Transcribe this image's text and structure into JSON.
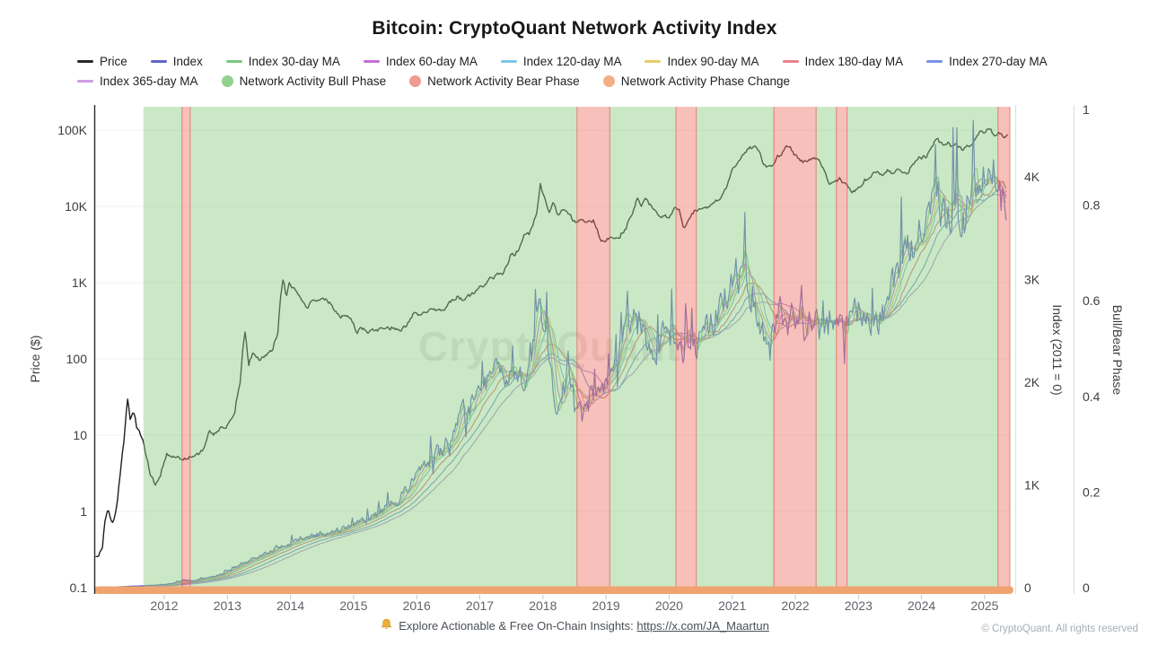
{
  "title": "Bitcoin: CryptoQuant Network Activity Index",
  "watermark": "CryptoQuant",
  "legend": {
    "rows": [
      [
        {
          "label": "Price",
          "type": "line",
          "color": "#26282b"
        },
        {
          "label": "Index",
          "type": "line",
          "color": "#6065c7"
        },
        {
          "label": "Index 30-day MA",
          "type": "line",
          "color": "#7dc87f"
        },
        {
          "label": "Index 60-day MA",
          "type": "line",
          "color": "#c36fd1"
        },
        {
          "label": "Index 120-day MA",
          "type": "line",
          "color": "#7cc4e4"
        },
        {
          "label": "Index 90-day MA",
          "type": "line",
          "color": "#e4cd67"
        },
        {
          "label": "Index 180-day MA",
          "type": "line",
          "color": "#ec7f8d"
        },
        {
          "label": "Index 270-day MA",
          "type": "line",
          "color": "#7693e0"
        }
      ],
      [
        {
          "label": "Index 365-day MA",
          "type": "line",
          "color": "#cf9ce4"
        },
        {
          "label": "Network Activity Bull Phase",
          "type": "circle",
          "color": "#93d18e"
        },
        {
          "label": "Network Activity Bear Phase",
          "type": "circle",
          "color": "#f09b90"
        },
        {
          "label": "Network Activity Phase Change",
          "type": "circle",
          "color": "#f0b083"
        }
      ]
    ]
  },
  "axes": {
    "left": {
      "title": "Price ($)",
      "ticks": [
        "100K",
        "10K",
        "1K",
        "100",
        "10",
        "1",
        "0.1"
      ],
      "values": [
        100000,
        10000,
        1000,
        100,
        10,
        1,
        0.1
      ]
    },
    "right_index": {
      "title": "Index (2011 = 0)",
      "ticks": [
        "4K",
        "3K",
        "2K",
        "1K",
        "0"
      ],
      "values": [
        4000,
        3000,
        2000,
        1000,
        0
      ]
    },
    "right_phase": {
      "title": "Bull/Bear Phase",
      "ticks": [
        "1",
        "0.8",
        "0.6",
        "0.4",
        "0.2",
        "0"
      ],
      "values": [
        1,
        0.8,
        0.6,
        0.4,
        0.2,
        0
      ]
    },
    "x": {
      "ticks": [
        "2012",
        "2013",
        "2014",
        "2015",
        "2016",
        "2017",
        "2018",
        "2019",
        "2020",
        "2021",
        "2022",
        "2023",
        "2024",
        "2025"
      ],
      "values": [
        2012,
        2013,
        2014,
        2015,
        2016,
        2017,
        2018,
        2019,
        2020,
        2021,
        2022,
        2023,
        2024,
        2025
      ]
    }
  },
  "footer": {
    "text": "Explore Actionable & Free On-Chain Insights:",
    "link": "https://x.com/JA_Maartun",
    "copyright": "© CryptoQuant. All rights reserved"
  },
  "chart_data": {
    "type": "line",
    "x_domain": [
      2010.92,
      2025.4
    ],
    "price_axis": {
      "scale": "log",
      "range": [
        0.1,
        100000
      ]
    },
    "index_axis": {
      "range": [
        0,
        4672
      ]
    },
    "phase_axis": {
      "range": [
        0,
        1
      ]
    },
    "colors": {
      "price": "#1c1e21",
      "index": "#6065c7",
      "bull_band": "rgba(140,205,128,0.45)",
      "bear_band": "rgba(238,122,108,0.47)",
      "bear_edge": "rgba(221,85,75,0.55)",
      "change_band": "#efa46f",
      "grid": "rgba(0,0,0,0.055)"
    },
    "phases": {
      "bull": [
        [
          2011.67,
          2012.28
        ],
        [
          2012.41,
          2018.54
        ],
        [
          2019.06,
          2020.11
        ],
        [
          2020.43,
          2021.66
        ],
        [
          2022.33,
          2022.65
        ],
        [
          2022.82,
          2025.21
        ]
      ],
      "bear": [
        [
          2012.28,
          2012.41
        ],
        [
          2018.54,
          2019.06
        ],
        [
          2020.11,
          2020.43
        ],
        [
          2021.66,
          2022.33
        ],
        [
          2022.65,
          2022.82
        ],
        [
          2025.21,
          2025.4
        ]
      ],
      "change": [
        [
          2010.92,
          2025.4
        ]
      ]
    },
    "price_anchors": [
      [
        2010.92,
        0.25
      ],
      [
        2011.02,
        0.32
      ],
      [
        2011.07,
        0.8
      ],
      [
        2011.11,
        1.06
      ],
      [
        2011.15,
        0.82
      ],
      [
        2011.19,
        0.7
      ],
      [
        2011.25,
        1.15
      ],
      [
        2011.31,
        3.2
      ],
      [
        2011.37,
        9
      ],
      [
        2011.42,
        29.5
      ],
      [
        2011.46,
        16.5
      ],
      [
        2011.51,
        21
      ],
      [
        2011.56,
        13
      ],
      [
        2011.62,
        10.5
      ],
      [
        2011.69,
        6.5
      ],
      [
        2011.77,
        3.2
      ],
      [
        2011.86,
        2.2
      ],
      [
        2011.94,
        3.1
      ],
      [
        2012.04,
        5.6
      ],
      [
        2012.16,
        5
      ],
      [
        2012.3,
        4.85
      ],
      [
        2012.42,
        5.15
      ],
      [
        2012.54,
        5.7
      ],
      [
        2012.64,
        6.9
      ],
      [
        2012.71,
        11.2
      ],
      [
        2012.79,
        10.2
      ],
      [
        2012.92,
        12.8
      ],
      [
        2013.02,
        13.6
      ],
      [
        2013.12,
        21
      ],
      [
        2013.21,
        48
      ],
      [
        2013.28,
        210
      ],
      [
        2013.33,
        77
      ],
      [
        2013.4,
        118
      ],
      [
        2013.5,
        97
      ],
      [
        2013.62,
        106
      ],
      [
        2013.72,
        135
      ],
      [
        2013.81,
        230
      ],
      [
        2013.88,
        1120
      ],
      [
        2013.93,
        640
      ],
      [
        2013.98,
        960
      ],
      [
        2014.06,
        820
      ],
      [
        2014.16,
        610
      ],
      [
        2014.26,
        445
      ],
      [
        2014.36,
        590
      ],
      [
        2014.47,
        605
      ],
      [
        2014.58,
        580
      ],
      [
        2014.68,
        470
      ],
      [
        2014.78,
        375
      ],
      [
        2014.88,
        355
      ],
      [
        2014.98,
        310
      ],
      [
        2015.05,
        215
      ],
      [
        2015.12,
        255
      ],
      [
        2015.22,
        232
      ],
      [
        2015.36,
        248
      ],
      [
        2015.5,
        228
      ],
      [
        2015.62,
        258
      ],
      [
        2015.72,
        236
      ],
      [
        2015.82,
        262
      ],
      [
        2015.9,
        335
      ],
      [
        2015.97,
        415
      ],
      [
        2016.06,
        382
      ],
      [
        2016.16,
        422
      ],
      [
        2016.26,
        452
      ],
      [
        2016.36,
        424
      ],
      [
        2016.46,
        455
      ],
      [
        2016.56,
        580
      ],
      [
        2016.63,
        660
      ],
      [
        2016.71,
        598
      ],
      [
        2016.81,
        638
      ],
      [
        2016.91,
        735
      ],
      [
        2017.0,
        965
      ],
      [
        2017.06,
        888
      ],
      [
        2017.16,
        1190
      ],
      [
        2017.26,
        1210
      ],
      [
        2017.36,
        1310
      ],
      [
        2017.46,
        1920
      ],
      [
        2017.51,
        2550
      ],
      [
        2017.56,
        2280
      ],
      [
        2017.63,
        2850
      ],
      [
        2017.71,
        4300
      ],
      [
        2017.79,
        4250
      ],
      [
        2017.86,
        6600
      ],
      [
        2017.91,
        8100
      ],
      [
        2017.96,
        19200
      ],
      [
        2018.01,
        13800
      ],
      [
        2018.06,
        10200
      ],
      [
        2018.11,
        8400
      ],
      [
        2018.16,
        11200
      ],
      [
        2018.23,
        7500
      ],
      [
        2018.31,
        9100
      ],
      [
        2018.41,
        7400
      ],
      [
        2018.51,
        6400
      ],
      [
        2018.61,
        6600
      ],
      [
        2018.71,
        6300
      ],
      [
        2018.81,
        6450
      ],
      [
        2018.89,
        4100
      ],
      [
        2018.96,
        3300
      ],
      [
        2019.03,
        3750
      ],
      [
        2019.12,
        3920
      ],
      [
        2019.22,
        4150
      ],
      [
        2019.32,
        5400
      ],
      [
        2019.42,
        8200
      ],
      [
        2019.5,
        12800
      ],
      [
        2019.56,
        10400
      ],
      [
        2019.62,
        11900
      ],
      [
        2019.72,
        9700
      ],
      [
        2019.82,
        8300
      ],
      [
        2019.92,
        7250
      ],
      [
        2020.01,
        7200
      ],
      [
        2020.08,
        9500
      ],
      [
        2020.16,
        8900
      ],
      [
        2020.23,
        5000
      ],
      [
        2020.32,
        6900
      ],
      [
        2020.42,
        9100
      ],
      [
        2020.52,
        9400
      ],
      [
        2020.62,
        9300
      ],
      [
        2020.72,
        11600
      ],
      [
        2020.82,
        13600
      ],
      [
        2020.92,
        19000
      ],
      [
        2021.0,
        29200
      ],
      [
        2021.06,
        34000
      ],
      [
        2021.12,
        38000
      ],
      [
        2021.18,
        50000
      ],
      [
        2021.25,
        58000
      ],
      [
        2021.32,
        59500
      ],
      [
        2021.36,
        63500
      ],
      [
        2021.43,
        53000
      ],
      [
        2021.49,
        36500
      ],
      [
        2021.56,
        34500
      ],
      [
        2021.63,
        33500
      ],
      [
        2021.71,
        43000
      ],
      [
        2021.79,
        49000
      ],
      [
        2021.86,
        65000
      ],
      [
        2021.91,
        59000
      ],
      [
        2021.98,
        47500
      ],
      [
        2022.06,
        41500
      ],
      [
        2022.14,
        38500
      ],
      [
        2022.22,
        42500
      ],
      [
        2022.31,
        45500
      ],
      [
        2022.39,
        39500
      ],
      [
        2022.46,
        29800
      ],
      [
        2022.53,
        20500
      ],
      [
        2022.61,
        20000
      ],
      [
        2022.71,
        22500
      ],
      [
        2022.81,
        19400
      ],
      [
        2022.89,
        15900
      ],
      [
        2022.97,
        16900
      ],
      [
        2023.04,
        17200
      ],
      [
        2023.1,
        21800
      ],
      [
        2023.17,
        23200
      ],
      [
        2023.24,
        28300
      ],
      [
        2023.32,
        28600
      ],
      [
        2023.4,
        26700
      ],
      [
        2023.47,
        30600
      ],
      [
        2023.54,
        25900
      ],
      [
        2023.62,
        29800
      ],
      [
        2023.7,
        26300
      ],
      [
        2023.78,
        27600
      ],
      [
        2023.85,
        34800
      ],
      [
        2023.92,
        37800
      ],
      [
        2023.99,
        43800
      ],
      [
        2024.07,
        42800
      ],
      [
        2024.14,
        52500
      ],
      [
        2024.21,
        69000
      ],
      [
        2024.26,
        73500
      ],
      [
        2024.33,
        63500
      ],
      [
        2024.41,
        67500
      ],
      [
        2024.49,
        60500
      ],
      [
        2024.56,
        65500
      ],
      [
        2024.63,
        56500
      ],
      [
        2024.71,
        61000
      ],
      [
        2024.79,
        63500
      ],
      [
        2024.86,
        76000
      ],
      [
        2024.92,
        99000
      ],
      [
        2024.98,
        96500
      ],
      [
        2025.04,
        104500
      ],
      [
        2025.1,
        96000
      ],
      [
        2025.16,
        83500
      ],
      [
        2025.22,
        95500
      ],
      [
        2025.28,
        81500
      ],
      [
        2025.36,
        86000
      ]
    ],
    "index_anchors": [
      [
        2011.02,
        3
      ],
      [
        2011.4,
        12
      ],
      [
        2011.8,
        22
      ],
      [
        2012.1,
        35
      ],
      [
        2012.3,
        75
      ],
      [
        2012.45,
        65
      ],
      [
        2012.7,
        100
      ],
      [
        2012.95,
        140
      ],
      [
        2013.2,
        230
      ],
      [
        2013.5,
        300
      ],
      [
        2013.8,
        400
      ],
      [
        2014.1,
        470
      ],
      [
        2014.4,
        515
      ],
      [
        2014.7,
        550
      ],
      [
        2014.95,
        590
      ],
      [
        2015.2,
        660
      ],
      [
        2015.5,
        760
      ],
      [
        2015.75,
        880
      ],
      [
        2016.0,
        1060
      ],
      [
        2016.25,
        1250
      ],
      [
        2016.5,
        1420
      ],
      [
        2016.75,
        1700
      ],
      [
        2016.95,
        1850
      ],
      [
        2017.1,
        2000
      ],
      [
        2017.25,
        2180
      ],
      [
        2017.4,
        2020
      ],
      [
        2017.55,
        2120
      ],
      [
        2017.7,
        2020
      ],
      [
        2017.82,
        2250
      ],
      [
        2017.93,
        2880
      ],
      [
        2018.02,
        2600
      ],
      [
        2018.12,
        2150
      ],
      [
        2018.22,
        1620
      ],
      [
        2018.32,
        1900
      ],
      [
        2018.4,
        2200
      ],
      [
        2018.5,
        1750
      ],
      [
        2018.62,
        1650
      ],
      [
        2018.75,
        1820
      ],
      [
        2018.9,
        1900
      ],
      [
        2019.05,
        2000
      ],
      [
        2019.2,
        2280
      ],
      [
        2019.35,
        2550
      ],
      [
        2019.47,
        2700
      ],
      [
        2019.62,
        2480
      ],
      [
        2019.77,
        2350
      ],
      [
        2019.92,
        2430
      ],
      [
        2020.07,
        2440
      ],
      [
        2020.2,
        2330
      ],
      [
        2020.33,
        2290
      ],
      [
        2020.47,
        2370
      ],
      [
        2020.62,
        2520
      ],
      [
        2020.77,
        2650
      ],
      [
        2020.92,
        2850
      ],
      [
        2021.05,
        3060
      ],
      [
        2021.2,
        3000
      ],
      [
        2021.33,
        2880
      ],
      [
        2021.47,
        2550
      ],
      [
        2021.57,
        2260
      ],
      [
        2021.67,
        2620
      ],
      [
        2021.77,
        2700
      ],
      [
        2021.87,
        2580
      ],
      [
        2021.97,
        2660
      ],
      [
        2022.12,
        2500
      ],
      [
        2022.27,
        2560
      ],
      [
        2022.42,
        2500
      ],
      [
        2022.57,
        2530
      ],
      [
        2022.72,
        2520
      ],
      [
        2022.87,
        2560
      ],
      [
        2022.97,
        2720
      ],
      [
        2023.12,
        2560
      ],
      [
        2023.27,
        2620
      ],
      [
        2023.42,
        2720
      ],
      [
        2023.57,
        2950
      ],
      [
        2023.72,
        3150
      ],
      [
        2023.87,
        3300
      ],
      [
        2024.0,
        3450
      ],
      [
        2024.13,
        3800
      ],
      [
        2024.22,
        3900
      ],
      [
        2024.32,
        3650
      ],
      [
        2024.45,
        3580
      ],
      [
        2024.57,
        3760
      ],
      [
        2024.68,
        3650
      ],
      [
        2024.8,
        3850
      ],
      [
        2024.9,
        4050
      ],
      [
        2025.0,
        4180
      ],
      [
        2025.08,
        4250
      ],
      [
        2025.16,
        4120
      ],
      [
        2025.23,
        3850
      ],
      [
        2025.29,
        3420
      ],
      [
        2025.34,
        3560
      ]
    ],
    "moving_averages": [
      {
        "label": "Index 30-day MA",
        "days": 30,
        "color": "#7dc87f"
      },
      {
        "label": "Index 60-day MA",
        "days": 60,
        "color": "#c36fd1"
      },
      {
        "label": "Index 90-day MA",
        "days": 90,
        "color": "#ddc567"
      },
      {
        "label": "Index 120-day MA",
        "days": 120,
        "color": "#6fbcd4"
      },
      {
        "label": "Index 180-day MA",
        "days": 180,
        "color": "#d4756f"
      },
      {
        "label": "Index 270-day MA",
        "days": 270,
        "color": "#7090d6"
      },
      {
        "label": "Index 365-day MA",
        "days": 365,
        "color": "#ad8ed6"
      }
    ]
  }
}
